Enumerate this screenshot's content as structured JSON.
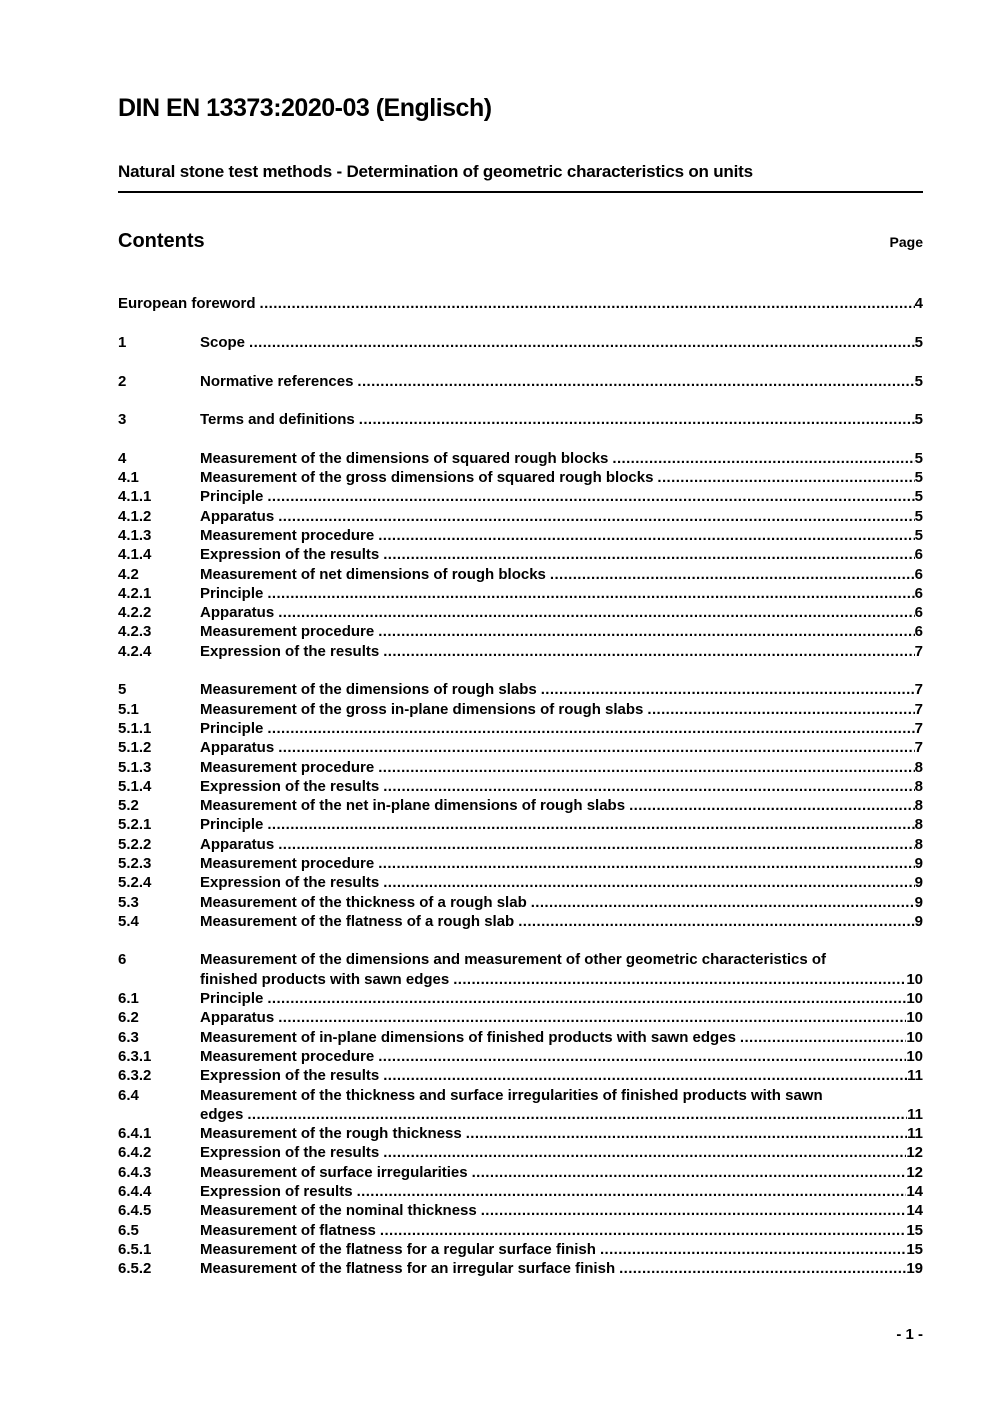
{
  "document": {
    "title": "DIN EN 13373:2020-03 (Englisch)",
    "subtitle": "Natural stone test methods - Determination of geometric characteristics on units",
    "contents_heading": "Contents",
    "page_column_label": "Page",
    "footer_page_label": "- 1 -"
  },
  "toc": {
    "entries": [
      {
        "num": "",
        "pre": "",
        "label": "European foreword",
        "page": "4",
        "gap": false
      },
      {
        "num": "1",
        "pre": "",
        "label": "Scope",
        "page": "5",
        "gap": true
      },
      {
        "num": "2",
        "pre": "",
        "label": "Normative references",
        "page": "5",
        "gap": true
      },
      {
        "num": "3",
        "pre": "",
        "label": "Terms and definitions",
        "page": "5",
        "gap": true
      },
      {
        "num": "4",
        "pre": "",
        "label": "Measurement of the dimensions of squared rough blocks",
        "page": "5",
        "gap": true
      },
      {
        "num": "4.1",
        "pre": "",
        "label": "Measurement of the gross dimensions of squared rough blocks",
        "page": "5",
        "gap": false
      },
      {
        "num": "4.1.1",
        "pre": "",
        "label": "Principle",
        "page": "5",
        "gap": false
      },
      {
        "num": "4.1.2",
        "pre": "",
        "label": "Apparatus",
        "page": "5",
        "gap": false
      },
      {
        "num": "4.1.3",
        "pre": "",
        "label": "Measurement procedure",
        "page": "5",
        "gap": false
      },
      {
        "num": "4.1.4",
        "pre": "",
        "label": "Expression of the results",
        "page": "6",
        "gap": false
      },
      {
        "num": "4.2",
        "pre": "",
        "label": "Measurement of net dimensions of rough blocks",
        "page": "6",
        "gap": false
      },
      {
        "num": "4.2.1",
        "pre": "",
        "label": "Principle",
        "page": "6",
        "gap": false
      },
      {
        "num": "4.2.2",
        "pre": "",
        "label": "Apparatus",
        "page": "6",
        "gap": false
      },
      {
        "num": "4.2.3",
        "pre": "",
        "label": "Measurement procedure",
        "page": "6",
        "gap": false
      },
      {
        "num": "4.2.4",
        "pre": "",
        "label": "Expression of the results",
        "page": "7",
        "gap": false
      },
      {
        "num": "5",
        "pre": "",
        "label": "Measurement of the dimensions of rough slabs",
        "page": "7",
        "gap": true
      },
      {
        "num": "5.1",
        "pre": "",
        "label": "Measurement of the gross in-plane dimensions of rough slabs",
        "page": "7",
        "gap": false
      },
      {
        "num": "5.1.1",
        "pre": "",
        "label": "Principle",
        "page": "7",
        "gap": false
      },
      {
        "num": "5.1.2",
        "pre": "",
        "label": "Apparatus",
        "page": "7",
        "gap": false
      },
      {
        "num": "5.1.3",
        "pre": "",
        "label": "Measurement procedure",
        "page": "8",
        "gap": false
      },
      {
        "num": "5.1.4",
        "pre": "",
        "label": "Expression of the results",
        "page": "8",
        "gap": false
      },
      {
        "num": "5.2",
        "pre": "",
        "label": "Measurement of the net in-plane dimensions of rough slabs",
        "page": "8",
        "gap": false
      },
      {
        "num": "5.2.1",
        "pre": "",
        "label": "Principle",
        "page": "8",
        "gap": false
      },
      {
        "num": "5.2.2",
        "pre": "",
        "label": "Apparatus",
        "page": "8",
        "gap": false
      },
      {
        "num": "5.2.3",
        "pre": "",
        "label": "Measurement procedure",
        "page": "9",
        "gap": false
      },
      {
        "num": "5.2.4",
        "pre": "",
        "label": "Expression of the results",
        "page": "9",
        "gap": false
      },
      {
        "num": "5.3",
        "pre": "",
        "label": "Measurement of the thickness of a rough slab",
        "page": "9",
        "gap": false
      },
      {
        "num": "5.4",
        "pre": "",
        "label": "Measurement of the flatness of a rough slab",
        "page": "9",
        "gap": false
      },
      {
        "num": "6",
        "pre": "Measurement of the dimensions and measurement of other geometric characteristics of",
        "label": "finished products with sawn edges",
        "page": "10",
        "gap": true
      },
      {
        "num": "6.1",
        "pre": "",
        "label": "Principle",
        "page": "10",
        "gap": false
      },
      {
        "num": "6.2",
        "pre": "",
        "label": "Apparatus",
        "page": "10",
        "gap": false
      },
      {
        "num": "6.3",
        "pre": "",
        "label": "Measurement of in-plane dimensions of finished products with sawn edges",
        "page": "10",
        "gap": false
      },
      {
        "num": "6.3.1",
        "pre": "",
        "label": "Measurement procedure",
        "page": "10",
        "gap": false
      },
      {
        "num": "6.3.2",
        "pre": "",
        "label": "Expression of the results",
        "page": "11",
        "gap": false
      },
      {
        "num": "6.4",
        "pre": "Measurement of the thickness and surface irregularities of finished products with sawn",
        "label": "edges",
        "page": "11",
        "gap": false
      },
      {
        "num": "6.4.1",
        "pre": "",
        "label": "Measurement of the rough thickness",
        "page": "11",
        "gap": false
      },
      {
        "num": "6.4.2",
        "pre": "",
        "label": "Expression of the results",
        "page": "12",
        "gap": false
      },
      {
        "num": "6.4.3",
        "pre": "",
        "label": "Measurement of surface irregularities",
        "page": "12",
        "gap": false
      },
      {
        "num": "6.4.4",
        "pre": "",
        "label": "Expression of results",
        "page": "14",
        "gap": false
      },
      {
        "num": "6.4.5",
        "pre": "",
        "label": "Measurement of the nominal thickness",
        "page": "14",
        "gap": false
      },
      {
        "num": "6.5",
        "pre": "",
        "label": "Measurement of flatness",
        "page": "15",
        "gap": false
      },
      {
        "num": "6.5.1",
        "pre": "",
        "label": "Measurement of the flatness for a regular surface finish",
        "page": "15",
        "gap": false
      },
      {
        "num": "6.5.2",
        "pre": "",
        "label": "Measurement of the flatness for an irregular surface finish",
        "page": "19",
        "gap": false
      }
    ]
  }
}
